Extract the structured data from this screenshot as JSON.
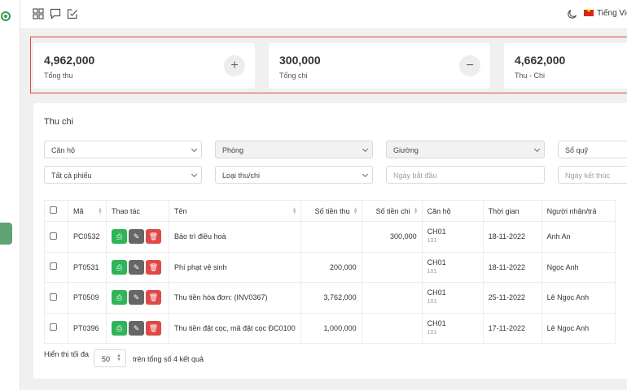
{
  "header": {
    "language": "Tiếng Việt"
  },
  "stats": [
    {
      "value": "4,962,000",
      "label": "Tổng thu",
      "icon": "+"
    },
    {
      "value": "300,000",
      "label": "Tổng chi",
      "icon": "−"
    },
    {
      "value": "4,662,000",
      "label": "Thu - Chi"
    }
  ],
  "panel": {
    "title": "Thu chi",
    "filters": {
      "apartment": "Căn hộ",
      "room": "Phòng",
      "bed": "Giường",
      "fund": "Sổ quỹ",
      "voucher_type": "Tất cả phiếu",
      "category": "Loại thu/chi",
      "start_date_placeholder": "Ngày bắt đầu",
      "end_date_placeholder": "Ngày kết thúc"
    },
    "table": {
      "columns": {
        "code": "Mã",
        "actions": "Thao tác",
        "name": "Tên",
        "income": "Số tiền thu",
        "expense": "Số tiền chi",
        "apartment": "Căn hộ",
        "time": "Thời gian",
        "receiver": "Người nhận/trả"
      },
      "rows": [
        {
          "code": "PC0532",
          "name": "Bảo trì điều hoà",
          "income": "",
          "expense": "300,000",
          "apartment": "CH01",
          "room": "101",
          "time": "18-11-2022",
          "receiver": "Anh An"
        },
        {
          "code": "PT0531",
          "name": "Phí phạt vệ sinh",
          "income": "200,000",
          "expense": "",
          "apartment": "CH01",
          "room": "101",
          "time": "18-11-2022",
          "receiver": "Ngọc Anh"
        },
        {
          "code": "PT0509",
          "name": "Thu tiền hóa đơn: (INV0367)",
          "income": "3,762,000",
          "expense": "",
          "apartment": "CH01",
          "room": "101",
          "time": "25-11-2022",
          "receiver": "Lê Ngọc Anh"
        },
        {
          "code": "PT0396",
          "name": "Thu tiền đặt cọc, mã đặt cọc ĐC0100",
          "income": "1,000,000",
          "expense": "",
          "apartment": "CH01",
          "room": "101",
          "time": "17-11-2022",
          "receiver": "Lê Ngọc Anh"
        }
      ]
    },
    "footer": {
      "show_label": "Hiển thị tối đa",
      "page_size": "50",
      "total_text": "trên tổng số 4 kết quả"
    }
  },
  "colors": {
    "brand_green": "#2e8b3e",
    "expense_red": "#e0463c",
    "highlight_border": "#e0463c"
  },
  "icons": [
    "app-logo-icon",
    "grid-icon",
    "chat-icon",
    "edit-square-icon",
    "moon-icon",
    "vn-flag-icon",
    "plus-icon",
    "minus-icon",
    "print-icon",
    "edit-icon",
    "trash-icon"
  ]
}
